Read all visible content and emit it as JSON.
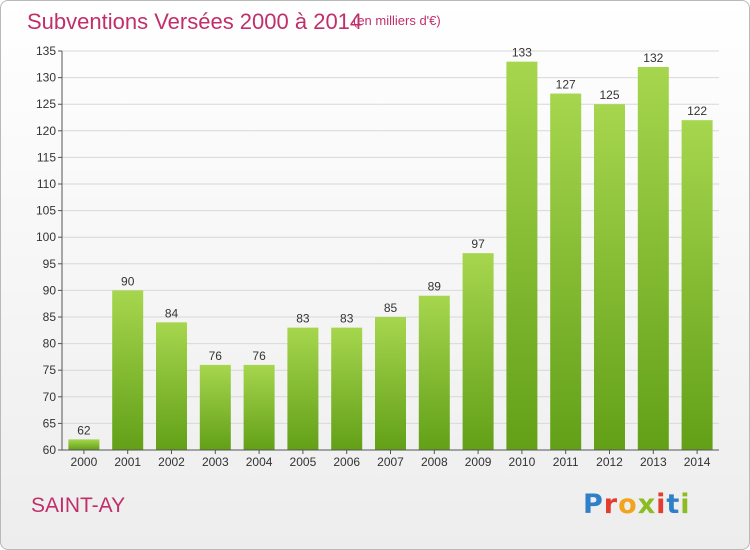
{
  "header": {
    "title": "Subventions Versées 2000 à 2014",
    "subtitle": "(en milliers d'€)"
  },
  "footer": {
    "place": "SAINT-AY",
    "logo_letters": [
      "P",
      "r",
      "o",
      "x",
      "i",
      "t",
      "i"
    ]
  },
  "colors": {
    "accent": "#c12f6b",
    "bar_light": "#a6d64e",
    "bar_dark": "#62a018",
    "grid": "#d8d8d8"
  },
  "chart_data": {
    "type": "bar",
    "title": "Subventions Versées 2000 à 2014",
    "subtitle": "(en milliers d'€)",
    "xlabel": "",
    "ylabel": "",
    "categories": [
      "2000",
      "2001",
      "2002",
      "2003",
      "2004",
      "2005",
      "2006",
      "2007",
      "2008",
      "2009",
      "2010",
      "2011",
      "2012",
      "2013",
      "2014"
    ],
    "values": [
      62,
      90,
      84,
      76,
      76,
      83,
      83,
      85,
      89,
      97,
      133,
      127,
      125,
      132,
      122
    ],
    "ylim": [
      60,
      135
    ],
    "yticks": [
      60,
      65,
      70,
      75,
      80,
      85,
      90,
      95,
      100,
      105,
      110,
      115,
      120,
      125,
      130,
      135
    ],
    "grid": true,
    "data_labels": true,
    "legend": "none"
  }
}
